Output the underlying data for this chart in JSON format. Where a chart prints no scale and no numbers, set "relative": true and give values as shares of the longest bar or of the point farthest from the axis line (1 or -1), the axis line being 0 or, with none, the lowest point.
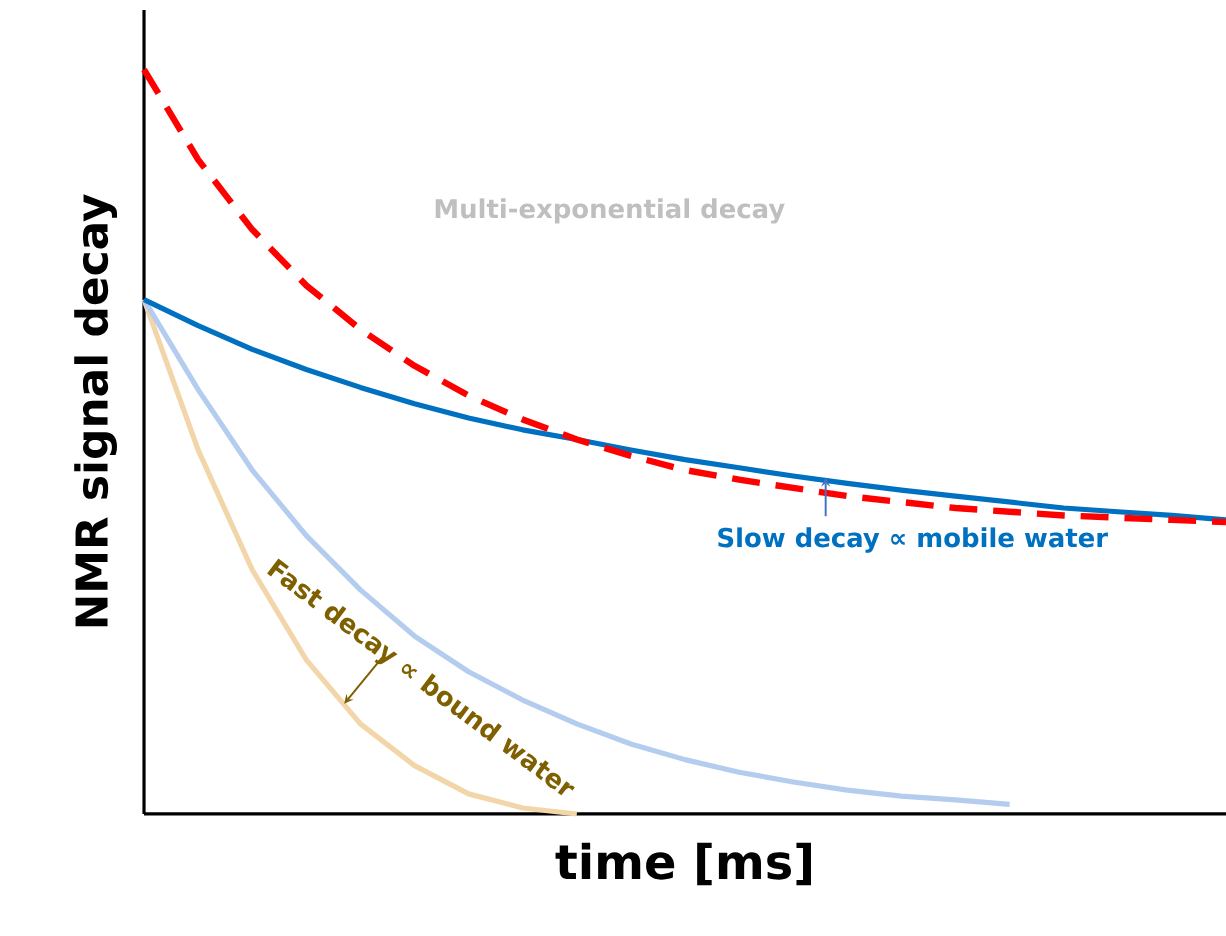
{
  "chart_data": {
    "type": "line",
    "xlabel": "time [ms]",
    "ylabel": "NMR signal decay",
    "relative": true,
    "marker": "none",
    "categories": [
      null,
      null,
      null,
      null,
      null,
      null,
      null,
      null,
      null,
      null,
      null,
      null,
      null,
      null,
      null,
      null,
      null,
      null,
      null,
      null,
      null
    ],
    "series": [
      {
        "color": "#f2d5a8",
        "values": [
          0.691,
          0.489,
          0.328,
          0.207,
          0.121,
          0.065,
          0.027,
          0.008,
          0,
          null,
          null,
          null,
          null,
          null,
          null,
          null,
          null,
          null,
          null,
          null,
          null
        ]
      },
      {
        "color": "#b4cdef",
        "values": [
          0.691,
          0.57,
          0.462,
          0.374,
          0.301,
          0.239,
          0.191,
          0.153,
          0.121,
          0.094,
          0.073,
          0.056,
          0.043,
          0.032,
          0.024,
          0.019,
          0.013,
          null,
          null,
          null,
          null
        ]
      },
      {
        "color": "#0070c0",
        "values": [
          0.691,
          0.656,
          0.624,
          0.597,
          0.573,
          0.551,
          0.532,
          0.516,
          0.503,
          0.489,
          0.476,
          0.465,
          0.454,
          0.444,
          0.435,
          0.427,
          0.419,
          0.411,
          0.406,
          0.401,
          0.395
        ]
      },
      {
        "color": "#ff0000",
        "line_style": "dashed",
        "values": [
          1.0,
          0.879,
          0.785,
          0.71,
          0.651,
          0.602,
          0.562,
          0.53,
          0.503,
          0.481,
          0.462,
          0.449,
          0.438,
          0.427,
          0.419,
          0.411,
          0.406,
          0.401,
          0.398,
          0.395,
          0.392
        ]
      }
    ],
    "annotations": [
      "Multi-exponential decay",
      "Slow decay ∝ mobile water",
      "Fast decay ∝ bound water"
    ]
  }
}
